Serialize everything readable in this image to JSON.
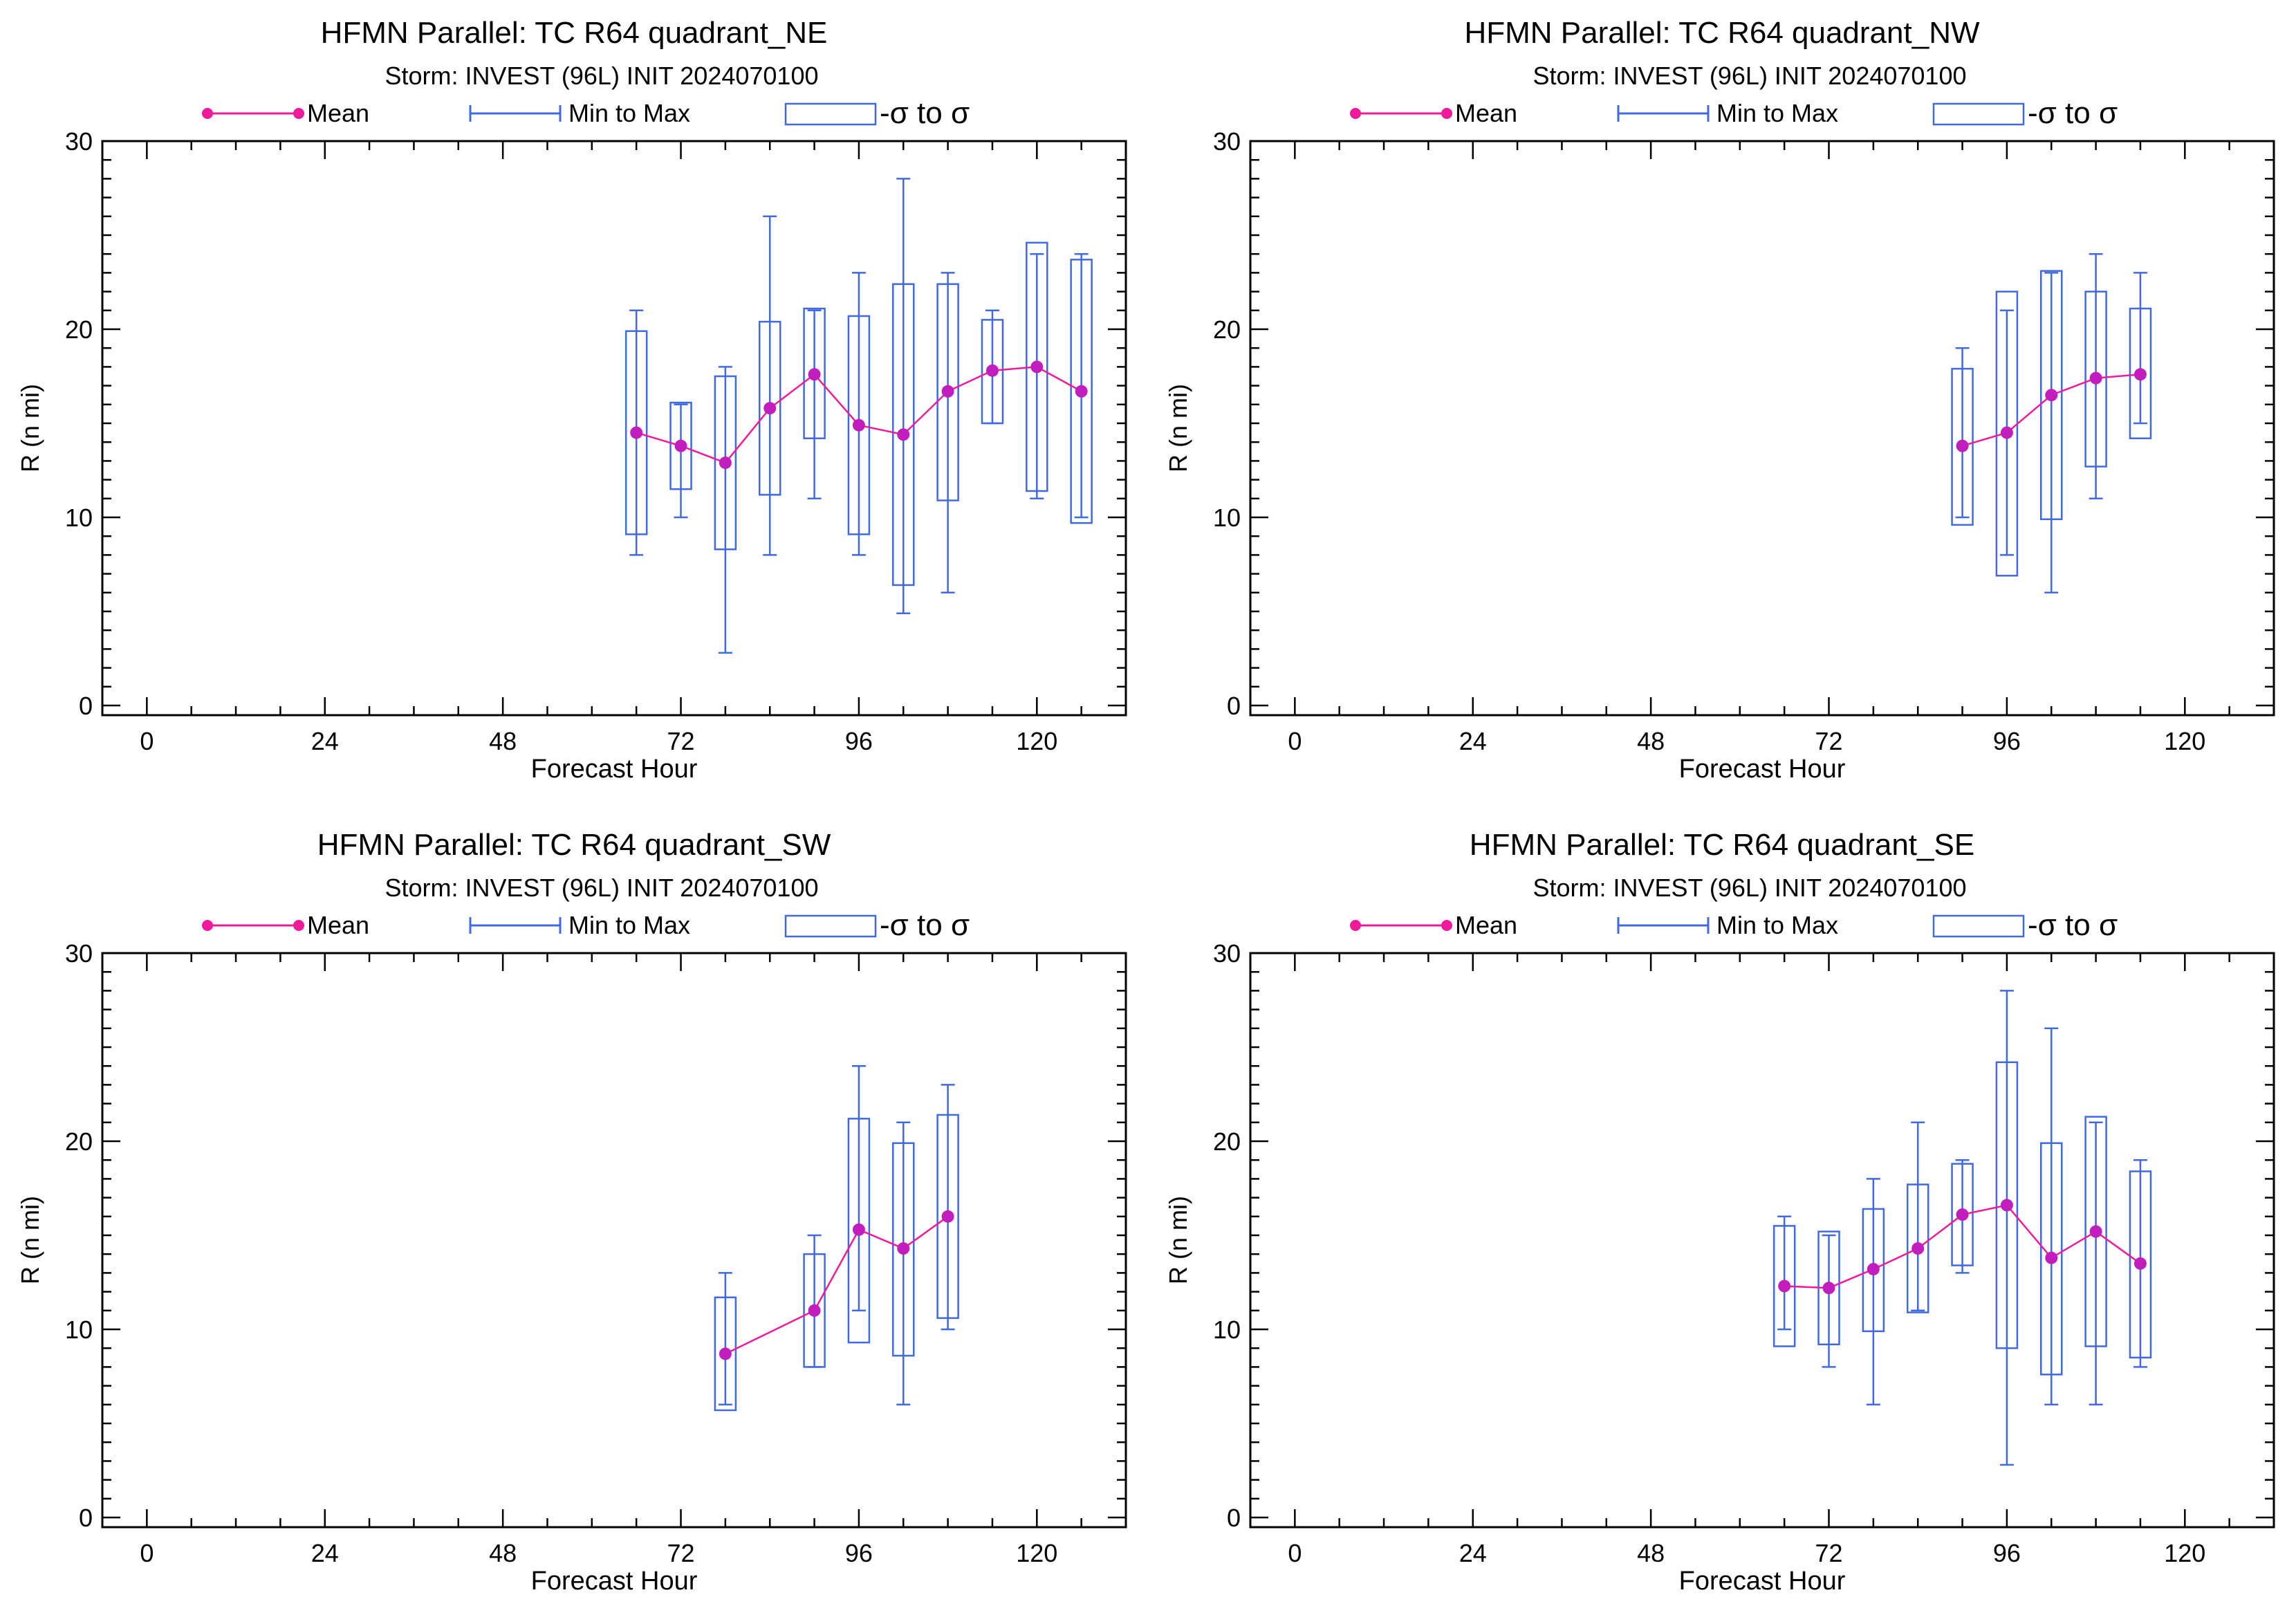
{
  "legend": {
    "mean_label": "Mean",
    "minmax_label": "Min to Max",
    "sigma_label": "-σ to σ"
  },
  "colors": {
    "mean_line": "#ee1b9b",
    "mean_dot": "#c21ebe",
    "box": "#4169e1",
    "axis": "#000000"
  },
  "chart_data": [
    {
      "type": "box",
      "title": "HFMN Parallel: TC  R64 quadrant_NE",
      "subtitle": "Storm: INVEST (96L) INIT 2024070100",
      "xlabel": "Forecast Hour",
      "ylabel": "R (n mi)",
      "xlim": [
        -6,
        132
      ],
      "ylim": [
        0,
        30
      ],
      "xticks": [
        0,
        24,
        48,
        72,
        96,
        120
      ],
      "yticks": [
        0,
        10,
        20,
        30
      ],
      "points": [
        {
          "x": 66,
          "mean": 14.5,
          "min": 8,
          "max": 21,
          "sd_low": 9.1,
          "sd_high": 19.9
        },
        {
          "x": 72,
          "mean": 13.8,
          "min": 10,
          "max": 16,
          "sd_low": 11.5,
          "sd_high": 16.1
        },
        {
          "x": 78,
          "mean": 12.9,
          "min": 2.8,
          "max": 18,
          "sd_low": 8.3,
          "sd_high": 17.5
        },
        {
          "x": 84,
          "mean": 15.8,
          "min": 8,
          "max": 26,
          "sd_low": 11.2,
          "sd_high": 20.4
        },
        {
          "x": 90,
          "mean": 17.6,
          "min": 11,
          "max": 21,
          "sd_low": 14.2,
          "sd_high": 21.1
        },
        {
          "x": 96,
          "mean": 14.9,
          "min": 8,
          "max": 23,
          "sd_low": 9.1,
          "sd_high": 20.7
        },
        {
          "x": 102,
          "mean": 14.4,
          "min": 4.9,
          "max": 28,
          "sd_low": 6.4,
          "sd_high": 22.4
        },
        {
          "x": 108,
          "mean": 16.7,
          "min": 6,
          "max": 23,
          "sd_low": 10.9,
          "sd_high": 22.4
        },
        {
          "x": 114,
          "mean": 17.8,
          "min": 15,
          "max": 21,
          "sd_low": 15,
          "sd_high": 20.5
        },
        {
          "x": 120,
          "mean": 18,
          "min": 11,
          "max": 24,
          "sd_low": 11.4,
          "sd_high": 24.6
        },
        {
          "x": 126,
          "mean": 16.7,
          "min": 10,
          "max": 24,
          "sd_low": 9.7,
          "sd_high": 23.7
        }
      ]
    },
    {
      "type": "box",
      "title": "HFMN Parallel: TC  R64 quadrant_NW",
      "subtitle": "Storm: INVEST (96L) INIT 2024070100",
      "xlabel": "Forecast Hour",
      "ylabel": "R (n mi)",
      "xlim": [
        -6,
        132
      ],
      "ylim": [
        0,
        30
      ],
      "xticks": [
        0,
        24,
        48,
        72,
        96,
        120
      ],
      "yticks": [
        0,
        10,
        20,
        30
      ],
      "points": [
        {
          "x": 90,
          "mean": 13.8,
          "min": 10,
          "max": 19,
          "sd_low": 9.6,
          "sd_high": 17.9
        },
        {
          "x": 96,
          "mean": 14.5,
          "min": 8,
          "max": 21,
          "sd_low": 6.9,
          "sd_high": 22
        },
        {
          "x": 102,
          "mean": 16.5,
          "min": 6,
          "max": 23,
          "sd_low": 9.9,
          "sd_high": 23.1
        },
        {
          "x": 108,
          "mean": 17.4,
          "min": 11,
          "max": 24,
          "sd_low": 12.7,
          "sd_high": 22
        },
        {
          "x": 114,
          "mean": 17.6,
          "min": 15,
          "max": 23,
          "sd_low": 14.2,
          "sd_high": 21.1
        }
      ]
    },
    {
      "type": "box",
      "title": "HFMN Parallel: TC  R64 quadrant_SW",
      "subtitle": "Storm: INVEST (96L) INIT 2024070100",
      "xlabel": "Forecast Hour",
      "ylabel": "R (n mi)",
      "xlim": [
        -6,
        132
      ],
      "ylim": [
        0,
        30
      ],
      "xticks": [
        0,
        24,
        48,
        72,
        96,
        120
      ],
      "yticks": [
        0,
        10,
        20,
        30
      ],
      "points": [
        {
          "x": 78,
          "mean": 8.7,
          "min": 6,
          "max": 13,
          "sd_low": 5.7,
          "sd_high": 11.7
        },
        {
          "x": 90,
          "mean": 11,
          "min": 8,
          "max": 15,
          "sd_low": 8,
          "sd_high": 14
        },
        {
          "x": 96,
          "mean": 15.3,
          "min": 11,
          "max": 24,
          "sd_low": 9.3,
          "sd_high": 21.2
        },
        {
          "x": 102,
          "mean": 14.3,
          "min": 6,
          "max": 21,
          "sd_low": 8.6,
          "sd_high": 19.9
        },
        {
          "x": 108,
          "mean": 16,
          "min": 10,
          "max": 23,
          "sd_low": 10.6,
          "sd_high": 21.4
        }
      ]
    },
    {
      "type": "box",
      "title": "HFMN Parallel: TC  R64 quadrant_SE",
      "subtitle": "Storm: INVEST (96L) INIT 2024070100",
      "xlabel": "Forecast Hour",
      "ylabel": "R (n mi)",
      "xlim": [
        -6,
        132
      ],
      "ylim": [
        0,
        30
      ],
      "xticks": [
        0,
        24,
        48,
        72,
        96,
        120
      ],
      "yticks": [
        0,
        10,
        20,
        30
      ],
      "points": [
        {
          "x": 66,
          "mean": 12.3,
          "min": 10,
          "max": 16,
          "sd_low": 9.1,
          "sd_high": 15.5
        },
        {
          "x": 72,
          "mean": 12.2,
          "min": 8,
          "max": 15,
          "sd_low": 9.2,
          "sd_high": 15.2
        },
        {
          "x": 78,
          "mean": 13.2,
          "min": 6,
          "max": 18,
          "sd_low": 9.9,
          "sd_high": 16.4
        },
        {
          "x": 84,
          "mean": 14.3,
          "min": 11,
          "max": 21,
          "sd_low": 10.9,
          "sd_high": 17.7
        },
        {
          "x": 90,
          "mean": 16.1,
          "min": 13,
          "max": 19,
          "sd_low": 13.4,
          "sd_high": 18.8
        },
        {
          "x": 96,
          "mean": 16.6,
          "min": 2.8,
          "max": 28,
          "sd_low": 9,
          "sd_high": 24.2
        },
        {
          "x": 102,
          "mean": 13.8,
          "min": 6,
          "max": 26,
          "sd_low": 7.6,
          "sd_high": 19.9
        },
        {
          "x": 108,
          "mean": 15.2,
          "min": 6,
          "max": 21,
          "sd_low": 9.1,
          "sd_high": 21.3
        },
        {
          "x": 114,
          "mean": 13.5,
          "min": 8,
          "max": 19,
          "sd_low": 8.5,
          "sd_high": 18.4
        }
      ]
    }
  ]
}
